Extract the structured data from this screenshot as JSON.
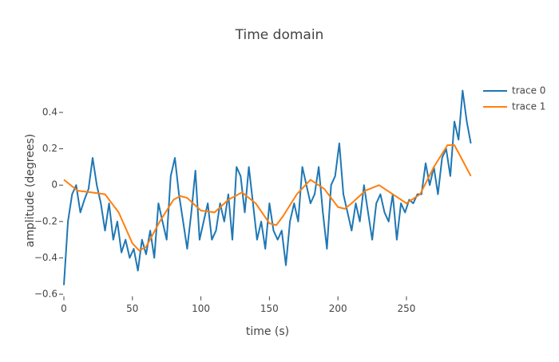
{
  "chart_data": {
    "type": "line",
    "title": "Time domain",
    "x_label": "time (s)",
    "y_label": "amplitude (degrees)",
    "xlim": [
      0,
      297
    ],
    "ylim": [
      -0.62,
      0.56
    ],
    "xticks": [
      0,
      50,
      100,
      150,
      200,
      250
    ],
    "yticks": [
      {
        "value": -0.6,
        "label": "−0.6"
      },
      {
        "value": -0.4,
        "label": "−0.4"
      },
      {
        "value": -0.2,
        "label": "−0.2"
      },
      0,
      0.2,
      0.4
    ],
    "grid": false,
    "legend": "top-right",
    "series": [
      {
        "name": "trace 0",
        "color": "#1f77b4",
        "x": [
          0,
          3,
          6,
          9,
          12,
          15,
          18,
          21,
          24,
          27,
          30,
          33,
          36,
          39,
          42,
          45,
          48,
          51,
          54,
          57,
          60,
          63,
          66,
          69,
          72,
          75,
          78,
          81,
          84,
          87,
          90,
          93,
          96,
          99,
          102,
          105,
          108,
          111,
          114,
          117,
          120,
          123,
          126,
          129,
          132,
          135,
          138,
          141,
          144,
          147,
          150,
          153,
          156,
          159,
          162,
          165,
          168,
          171,
          174,
          177,
          180,
          183,
          186,
          189,
          192,
          195,
          198,
          201,
          204,
          207,
          210,
          213,
          216,
          219,
          222,
          225,
          228,
          231,
          234,
          237,
          240,
          243,
          246,
          249,
          252,
          255,
          258,
          261,
          264,
          267,
          270,
          273,
          276,
          279,
          282,
          285,
          288,
          291,
          294,
          297
        ],
        "values": [
          -0.55,
          -0.2,
          -0.05,
          0.0,
          -0.15,
          -0.08,
          -0.02,
          0.15,
          0.0,
          -0.1,
          -0.25,
          -0.1,
          -0.3,
          -0.2,
          -0.37,
          -0.3,
          -0.4,
          -0.35,
          -0.47,
          -0.3,
          -0.38,
          -0.25,
          -0.4,
          -0.1,
          -0.2,
          -0.3,
          0.05,
          0.15,
          -0.05,
          -0.2,
          -0.35,
          -0.15,
          0.08,
          -0.3,
          -0.2,
          -0.1,
          -0.3,
          -0.25,
          -0.1,
          -0.2,
          -0.05,
          -0.3,
          0.1,
          0.05,
          -0.15,
          0.1,
          -0.1,
          -0.3,
          -0.2,
          -0.35,
          -0.1,
          -0.25,
          -0.3,
          -0.25,
          -0.44,
          -0.2,
          -0.1,
          -0.2,
          0.1,
          0.0,
          -0.1,
          -0.05,
          0.1,
          -0.15,
          -0.35,
          0.0,
          0.05,
          0.23,
          -0.05,
          -0.15,
          -0.25,
          -0.1,
          -0.2,
          0.0,
          -0.15,
          -0.3,
          -0.1,
          -0.05,
          -0.15,
          -0.2,
          -0.05,
          -0.3,
          -0.1,
          -0.15,
          -0.08,
          -0.1,
          -0.05,
          -0.05,
          0.12,
          0.0,
          0.1,
          -0.05,
          0.15,
          0.2,
          0.05,
          0.35,
          0.25,
          0.52,
          0.35,
          0.23
        ]
      },
      {
        "name": "trace 1",
        "color": "#ff7f0e",
        "x": [
          0,
          10,
          20,
          30,
          40,
          50,
          55,
          60,
          70,
          80,
          85,
          90,
          100,
          110,
          120,
          130,
          140,
          150,
          155,
          160,
          170,
          180,
          190,
          200,
          205,
          210,
          220,
          230,
          240,
          250,
          260,
          270,
          280,
          285,
          290,
          297
        ],
        "values": [
          0.03,
          -0.03,
          -0.04,
          -0.05,
          -0.15,
          -0.32,
          -0.36,
          -0.34,
          -0.2,
          -0.08,
          -0.06,
          -0.07,
          -0.14,
          -0.15,
          -0.08,
          -0.04,
          -0.1,
          -0.21,
          -0.22,
          -0.17,
          -0.05,
          0.03,
          -0.02,
          -0.12,
          -0.13,
          -0.1,
          -0.03,
          0.0,
          -0.05,
          -0.1,
          -0.05,
          0.1,
          0.22,
          0.22,
          0.15,
          0.05
        ]
      }
    ]
  }
}
